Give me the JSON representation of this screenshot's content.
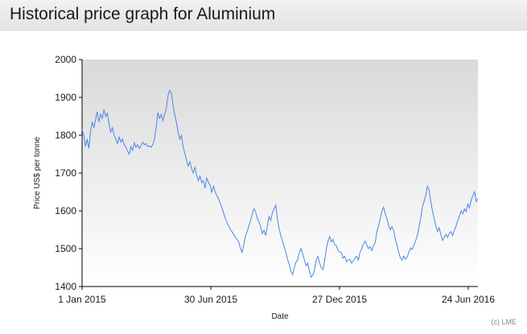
{
  "header": {
    "title": "Historical price graph for Aluminium"
  },
  "credit": "(c) LME",
  "colors": {
    "line": "#4a86e8",
    "plot_top": "#d9d9d9",
    "plot_bottom": "#ffffff"
  },
  "chart_data": {
    "type": "line",
    "xlabel": "Date",
    "ylabel": "Price US$ per tonne",
    "ylim": [
      1400,
      2000
    ],
    "yticks": [
      1400,
      1500,
      1600,
      1700,
      1800,
      1900,
      2000
    ],
    "xticks": [
      "1 Jan 2015",
      "30 Jun 2015",
      "27 Dec 2015",
      "24 Jun 2016"
    ],
    "grid": false,
    "series": [
      {
        "values": [
          [
            0,
            1815
          ],
          [
            2,
            1800
          ],
          [
            4,
            1770
          ],
          [
            6,
            1790
          ],
          [
            8,
            1765
          ],
          [
            10,
            1810
          ],
          [
            12,
            1835
          ],
          [
            14,
            1820
          ],
          [
            16,
            1840
          ],
          [
            18,
            1862
          ],
          [
            20,
            1835
          ],
          [
            22,
            1855
          ],
          [
            24,
            1845
          ],
          [
            26,
            1868
          ],
          [
            28,
            1850
          ],
          [
            30,
            1858
          ],
          [
            32,
            1830
          ],
          [
            34,
            1808
          ],
          [
            36,
            1820
          ],
          [
            38,
            1800
          ],
          [
            40,
            1790
          ],
          [
            42,
            1778
          ],
          [
            44,
            1795
          ],
          [
            46,
            1782
          ],
          [
            48,
            1790
          ],
          [
            50,
            1775
          ],
          [
            52,
            1768
          ],
          [
            54,
            1758
          ],
          [
            56,
            1750
          ],
          [
            58,
            1770
          ],
          [
            60,
            1760
          ],
          [
            62,
            1780
          ],
          [
            64,
            1768
          ],
          [
            66,
            1775
          ],
          [
            68,
            1765
          ],
          [
            70,
            1772
          ],
          [
            72,
            1782
          ],
          [
            74,
            1775
          ],
          [
            76,
            1778
          ],
          [
            78,
            1770
          ],
          [
            80,
            1772
          ],
          [
            82,
            1768
          ],
          [
            84,
            1775
          ],
          [
            86,
            1790
          ],
          [
            88,
            1820
          ],
          [
            90,
            1860
          ],
          [
            92,
            1845
          ],
          [
            94,
            1855
          ],
          [
            96,
            1838
          ],
          [
            98,
            1855
          ],
          [
            100,
            1870
          ],
          [
            102,
            1905
          ],
          [
            104,
            1918
          ],
          [
            106,
            1912
          ],
          [
            108,
            1880
          ],
          [
            110,
            1855
          ],
          [
            112,
            1835
          ],
          [
            114,
            1808
          ],
          [
            116,
            1790
          ],
          [
            118,
            1800
          ],
          [
            120,
            1770
          ],
          [
            122,
            1752
          ],
          [
            124,
            1735
          ],
          [
            126,
            1718
          ],
          [
            128,
            1730
          ],
          [
            130,
            1712
          ],
          [
            132,
            1700
          ],
          [
            134,
            1715
          ],
          [
            136,
            1695
          ],
          [
            138,
            1680
          ],
          [
            140,
            1692
          ],
          [
            142,
            1675
          ],
          [
            144,
            1680
          ],
          [
            146,
            1660
          ],
          [
            148,
            1688
          ],
          [
            150,
            1675
          ],
          [
            152,
            1668
          ],
          [
            154,
            1648
          ],
          [
            156,
            1665
          ],
          [
            158,
            1650
          ],
          [
            160,
            1640
          ],
          [
            162,
            1632
          ],
          [
            164,
            1620
          ],
          [
            166,
            1608
          ],
          [
            168,
            1595
          ],
          [
            170,
            1580
          ],
          [
            172,
            1570
          ],
          [
            174,
            1560
          ],
          [
            176,
            1552
          ],
          [
            178,
            1545
          ],
          [
            180,
            1538
          ],
          [
            182,
            1530
          ],
          [
            184,
            1525
          ],
          [
            186,
            1518
          ],
          [
            188,
            1500
          ],
          [
            190,
            1490
          ],
          [
            192,
            1510
          ],
          [
            194,
            1535
          ],
          [
            196,
            1545
          ],
          [
            198,
            1560
          ],
          [
            200,
            1575
          ],
          [
            202,
            1592
          ],
          [
            204,
            1605
          ],
          [
            206,
            1598
          ],
          [
            208,
            1580
          ],
          [
            210,
            1572
          ],
          [
            212,
            1558
          ],
          [
            214,
            1540
          ],
          [
            216,
            1548
          ],
          [
            218,
            1535
          ],
          [
            220,
            1560
          ],
          [
            222,
            1585
          ],
          [
            224,
            1575
          ],
          [
            226,
            1595
          ],
          [
            228,
            1605
          ],
          [
            230,
            1615
          ],
          [
            232,
            1578
          ],
          [
            234,
            1552
          ],
          [
            236,
            1535
          ],
          [
            238,
            1520
          ],
          [
            240,
            1505
          ],
          [
            242,
            1490
          ],
          [
            244,
            1472
          ],
          [
            246,
            1458
          ],
          [
            248,
            1440
          ],
          [
            250,
            1432
          ],
          [
            252,
            1450
          ],
          [
            254,
            1465
          ],
          [
            256,
            1470
          ],
          [
            258,
            1490
          ],
          [
            260,
            1500
          ],
          [
            262,
            1485
          ],
          [
            264,
            1470
          ],
          [
            266,
            1455
          ],
          [
            268,
            1462
          ],
          [
            270,
            1440
          ],
          [
            272,
            1425
          ],
          [
            274,
            1430
          ],
          [
            276,
            1445
          ],
          [
            278,
            1470
          ],
          [
            280,
            1480
          ],
          [
            282,
            1462
          ],
          [
            284,
            1450
          ],
          [
            286,
            1445
          ],
          [
            288,
            1468
          ],
          [
            290,
            1500
          ],
          [
            292,
            1520
          ],
          [
            294,
            1532
          ],
          [
            296,
            1518
          ],
          [
            298,
            1525
          ],
          [
            300,
            1510
          ],
          [
            302,
            1508
          ],
          [
            304,
            1495
          ],
          [
            306,
            1492
          ],
          [
            308,
            1488
          ],
          [
            310,
            1475
          ],
          [
            312,
            1480
          ],
          [
            314,
            1465
          ],
          [
            316,
            1470
          ],
          [
            318,
            1472
          ],
          [
            320,
            1462
          ],
          [
            322,
            1468
          ],
          [
            324,
            1475
          ],
          [
            326,
            1480
          ],
          [
            328,
            1470
          ],
          [
            330,
            1490
          ],
          [
            332,
            1500
          ],
          [
            334,
            1512
          ],
          [
            336,
            1520
          ],
          [
            338,
            1510
          ],
          [
            340,
            1500
          ],
          [
            342,
            1505
          ],
          [
            344,
            1495
          ],
          [
            346,
            1508
          ],
          [
            348,
            1515
          ],
          [
            350,
            1545
          ],
          [
            352,
            1560
          ],
          [
            354,
            1580
          ],
          [
            356,
            1600
          ],
          [
            358,
            1610
          ],
          [
            360,
            1592
          ],
          [
            362,
            1580
          ],
          [
            364,
            1562
          ],
          [
            366,
            1550
          ],
          [
            368,
            1558
          ],
          [
            370,
            1548
          ],
          [
            372,
            1525
          ],
          [
            374,
            1508
          ],
          [
            376,
            1490
          ],
          [
            378,
            1475
          ],
          [
            380,
            1470
          ],
          [
            382,
            1480
          ],
          [
            384,
            1472
          ],
          [
            386,
            1478
          ],
          [
            388,
            1490
          ],
          [
            390,
            1502
          ],
          [
            392,
            1498
          ],
          [
            394,
            1510
          ],
          [
            396,
            1520
          ],
          [
            398,
            1535
          ],
          [
            400,
            1555
          ],
          [
            402,
            1580
          ],
          [
            404,
            1610
          ],
          [
            406,
            1625
          ],
          [
            408,
            1640
          ],
          [
            410,
            1665
          ],
          [
            412,
            1655
          ],
          [
            414,
            1625
          ],
          [
            416,
            1600
          ],
          [
            418,
            1580
          ],
          [
            420,
            1560
          ],
          [
            422,
            1545
          ],
          [
            424,
            1555
          ],
          [
            426,
            1538
          ],
          [
            428,
            1522
          ],
          [
            430,
            1530
          ],
          [
            432,
            1538
          ],
          [
            434,
            1530
          ],
          [
            436,
            1540
          ],
          [
            438,
            1545
          ],
          [
            440,
            1535
          ],
          [
            442,
            1548
          ],
          [
            444,
            1560
          ],
          [
            446,
            1575
          ],
          [
            448,
            1585
          ],
          [
            450,
            1600
          ],
          [
            452,
            1592
          ],
          [
            454,
            1605
          ],
          [
            456,
            1598
          ],
          [
            458,
            1618
          ],
          [
            460,
            1608
          ],
          [
            462,
            1628
          ],
          [
            464,
            1640
          ],
          [
            466,
            1650
          ],
          [
            468,
            1625
          ],
          [
            470,
            1632
          ]
        ]
      }
    ]
  }
}
